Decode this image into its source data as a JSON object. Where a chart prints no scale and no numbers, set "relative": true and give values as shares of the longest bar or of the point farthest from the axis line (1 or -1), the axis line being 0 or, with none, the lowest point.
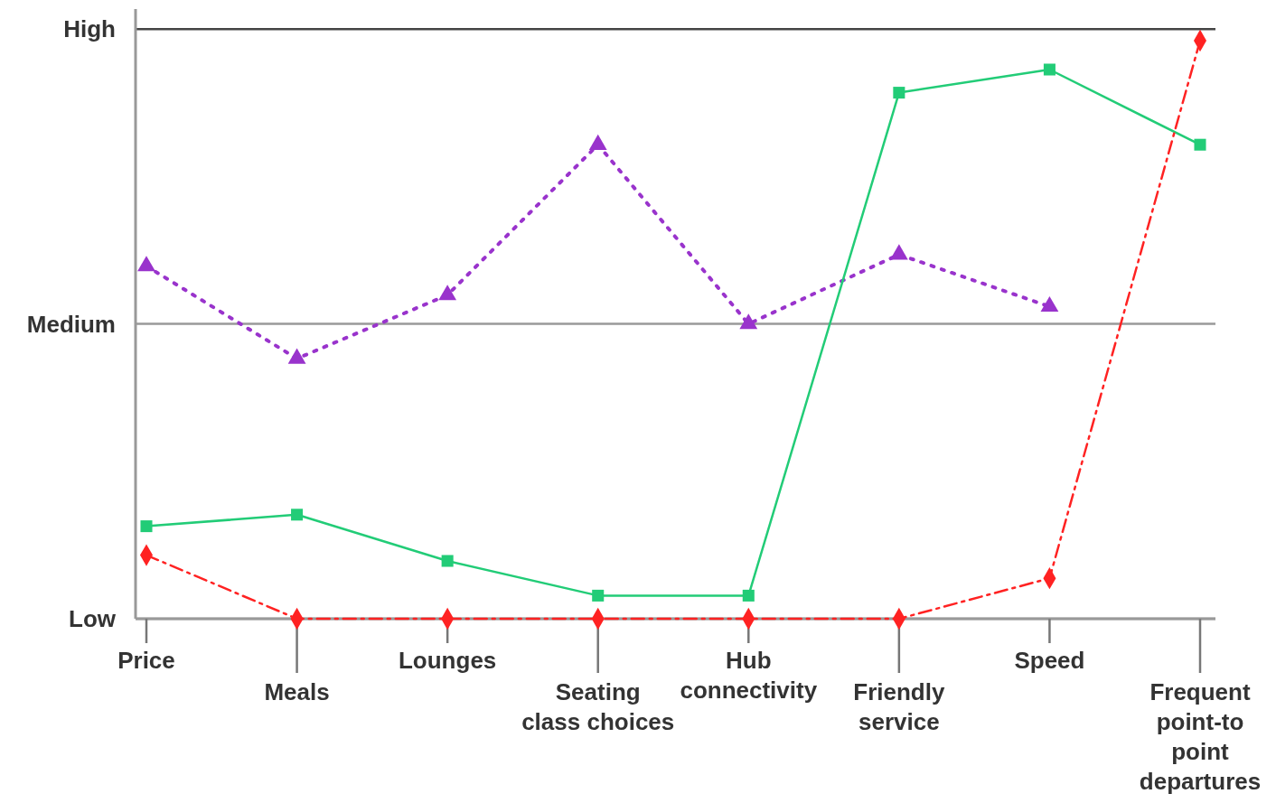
{
  "chart_data": {
    "type": "line",
    "categories": [
      "Price",
      "Meals",
      "Lounges",
      "Seating class choices",
      "Hub connectivity",
      "Friendly service",
      "Speed",
      "Frequent point-to point departures"
    ],
    "relative": true,
    "ref_lines": [
      {
        "axis": "y",
        "value": 0,
        "label": "Low",
        "color": "#999999"
      },
      {
        "axis": "y",
        "value": 0.51,
        "label": "Medium",
        "color": "#999999"
      },
      {
        "axis": "y",
        "value": 1.02,
        "label": "High",
        "color": "#444444"
      }
    ],
    "series": [
      {
        "color": "#9933cc",
        "marker": "triangle",
        "line_style": "dotted",
        "values": [
          0.61,
          0.45,
          0.56,
          0.82,
          0.51,
          0.63,
          0.54,
          null
        ]
      },
      {
        "color": "#22cc77",
        "marker": "square",
        "line_style": "solid",
        "values": [
          0.16,
          0.18,
          0.1,
          0.04,
          0.04,
          0.91,
          0.95,
          0.82
        ]
      },
      {
        "color": "#ff2222",
        "marker": "diamond",
        "line_style": "dashed",
        "values": [
          0.11,
          0,
          0,
          0,
          0,
          0,
          0.07,
          1
        ]
      }
    ]
  }
}
